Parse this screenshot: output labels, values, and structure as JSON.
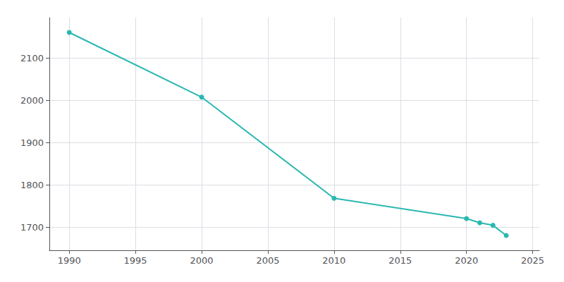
{
  "chart_data": {
    "type": "line",
    "x": [
      1990,
      2000,
      2010,
      2020,
      2021,
      2022,
      2023
    ],
    "values": [
      2160,
      2007,
      1768,
      1720,
      1710,
      1704,
      1680
    ],
    "color": "#29b8b0",
    "marker": "circle",
    "xlim": [
      1988.5,
      2025.5
    ],
    "ylim": [
      1645,
      2195
    ],
    "xticks": [
      1990,
      1995,
      2000,
      2005,
      2010,
      2015,
      2020,
      2025
    ],
    "yticks": [
      1700,
      1800,
      1900,
      2000,
      2100
    ],
    "grid": true
  }
}
